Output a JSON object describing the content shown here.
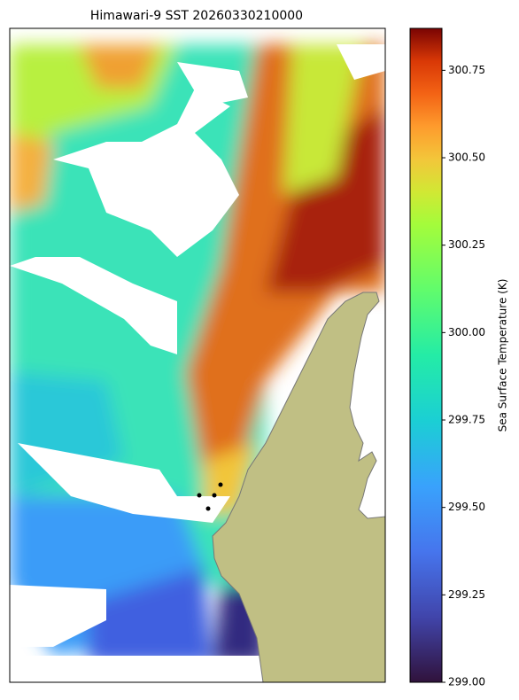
{
  "title": "Himawari-9 SST 20260330210000",
  "colorbar": {
    "label": "Sea Surface Temperature (K)",
    "lim": [
      299.0,
      300.87
    ],
    "ticks": [
      {
        "value": 299.0,
        "label": "299.00"
      },
      {
        "value": 299.25,
        "label": "299.25"
      },
      {
        "value": 299.5,
        "label": "299.50"
      },
      {
        "value": 299.75,
        "label": "299.75"
      },
      {
        "value": 300.0,
        "label": "300.00"
      },
      {
        "value": 300.25,
        "label": "300.25"
      },
      {
        "value": 300.5,
        "label": "300.50"
      },
      {
        "value": 300.75,
        "label": "300.75"
      }
    ]
  }
}
